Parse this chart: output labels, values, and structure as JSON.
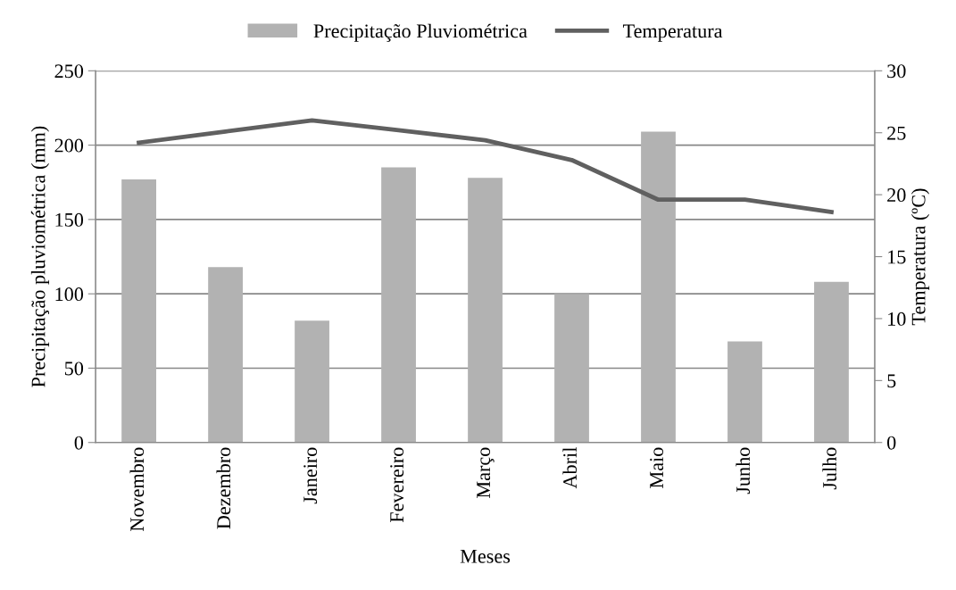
{
  "chart_data": {
    "type": "bar",
    "categories": [
      "Novembro",
      "Dezembro",
      "Janeiro",
      "Fevereiro",
      "Março",
      "Abril",
      "Maio",
      "Junho",
      "Julho"
    ],
    "series": [
      {
        "name": "Precipitação Pluviométrica",
        "color": "#b2b2b2",
        "values": [
          177,
          118,
          82,
          185,
          178,
          100,
          209,
          68,
          108
        ]
      },
      {
        "name": "Temperatura",
        "type": "line",
        "axis": "y2",
        "color": "#606060",
        "values": [
          24.2,
          25.1,
          26.0,
          25.2,
          24.4,
          22.8,
          19.6,
          19.6,
          18.6
        ]
      }
    ],
    "xlabel": "Meses",
    "ylabel": "Precipitação pluviométrica (mm)",
    "y2label": "Temperatura (ºC)",
    "ylim": [
      0,
      250
    ],
    "yticks": [
      0,
      50,
      100,
      150,
      200,
      250
    ],
    "y2lim": [
      0,
      30
    ],
    "y2ticks": [
      0,
      5,
      10,
      15,
      20,
      25,
      30
    ],
    "grid": "y",
    "legend": "top",
    "marker": "none",
    "line_style": "solid"
  }
}
